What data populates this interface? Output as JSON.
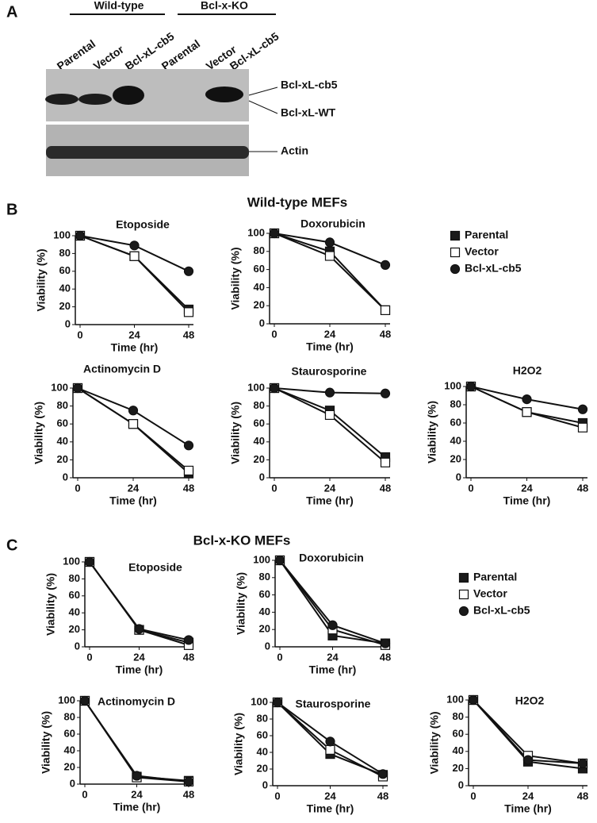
{
  "figure": {
    "panel_a": "A",
    "panel_b": "B",
    "panel_c": "C",
    "group_wt": "Wild-type",
    "group_ko": "Bcl-x-KO",
    "lanes": [
      "Parental",
      "Vector",
      "Bcl-xL-cb5",
      "Parental",
      "Vector",
      "Bcl-xL-cb5"
    ],
    "band_cb5": "Bcl-xL-cb5",
    "band_wt": "Bcl-xL-WT",
    "band_actin": "Actin",
    "section_wt": "Wild-type MEFs",
    "section_ko": "Bcl-x-KO MEFs"
  },
  "chart_data": [
    {
      "type": "line",
      "title": "Etoposide",
      "x": [
        0,
        24,
        48
      ],
      "xlim": [
        0,
        48
      ],
      "xticks": [
        0,
        24,
        48
      ],
      "ylim": [
        0,
        100
      ],
      "yticks": [
        0,
        20,
        40,
        60,
        80,
        100
      ],
      "xlabel": "Time (hr)",
      "ylabel": "Viability (%)",
      "series": [
        {
          "color": "#1a1a1a",
          "marker": "square",
          "values": [
            100,
            77,
            17
          ]
        },
        {
          "color": "#ffffff",
          "marker": "square",
          "values": [
            100,
            77,
            14
          ]
        },
        {
          "color": "#1a1a1a",
          "marker": "circle",
          "values": [
            100,
            89,
            60
          ]
        }
      ]
    },
    {
      "type": "line",
      "title": "Doxorubicin",
      "x": [
        0,
        24,
        48
      ],
      "xlim": [
        0,
        48
      ],
      "xticks": [
        0,
        24,
        48
      ],
      "ylim": [
        0,
        100
      ],
      "yticks": [
        0,
        20,
        40,
        60,
        80,
        100
      ],
      "xlabel": "Time (hr)",
      "ylabel": "Viability (%)",
      "legend": "right",
      "series": [
        {
          "name": "Parental",
          "color": "#1a1a1a",
          "marker": "square",
          "values": [
            100,
            80,
            15
          ]
        },
        {
          "name": "Vector",
          "color": "#ffffff",
          "marker": "square",
          "values": [
            100,
            75,
            15
          ]
        },
        {
          "name": "Bcl-xL-cb5",
          "color": "#1a1a1a",
          "marker": "circle",
          "values": [
            100,
            90,
            65
          ]
        }
      ]
    },
    {
      "type": "line",
      "title": "Actinomycin D",
      "x": [
        0,
        24,
        48
      ],
      "xlim": [
        0,
        48
      ],
      "xticks": [
        0,
        24,
        48
      ],
      "ylim": [
        0,
        100
      ],
      "yticks": [
        0,
        20,
        40,
        60,
        80,
        100
      ],
      "xlabel": "Time (hr)",
      "ylabel": "Viability (%)",
      "series": [
        {
          "color": "#1a1a1a",
          "marker": "square",
          "values": [
            100,
            60,
            5
          ]
        },
        {
          "color": "#ffffff",
          "marker": "square",
          "values": [
            100,
            60,
            8
          ]
        },
        {
          "color": "#1a1a1a",
          "marker": "circle",
          "values": [
            100,
            75,
            36
          ]
        }
      ]
    },
    {
      "type": "line",
      "title": "Staurosporine",
      "x": [
        0,
        24,
        48
      ],
      "xlim": [
        0,
        48
      ],
      "xticks": [
        0,
        24,
        48
      ],
      "ylim": [
        0,
        100
      ],
      "yticks": [
        0,
        20,
        40,
        60,
        80,
        100
      ],
      "xlabel": "Time (hr)",
      "ylabel": "Viability (%)",
      "series": [
        {
          "color": "#1a1a1a",
          "marker": "square",
          "values": [
            100,
            75,
            23
          ]
        },
        {
          "color": "#ffffff",
          "marker": "square",
          "values": [
            100,
            70,
            17
          ]
        },
        {
          "color": "#1a1a1a",
          "marker": "circle",
          "values": [
            100,
            95,
            94
          ]
        }
      ]
    },
    {
      "type": "line",
      "title": "H2O2",
      "x": [
        0,
        24,
        48
      ],
      "xlim": [
        0,
        48
      ],
      "xticks": [
        0,
        24,
        48
      ],
      "ylim": [
        0,
        100
      ],
      "yticks": [
        0,
        20,
        40,
        60,
        80,
        100
      ],
      "xlabel": "Time (hr)",
      "ylabel": "Viability (%)",
      "series": [
        {
          "color": "#1a1a1a",
          "marker": "square",
          "values": [
            100,
            72,
            60
          ]
        },
        {
          "color": "#ffffff",
          "marker": "square",
          "values": [
            100,
            72,
            55
          ]
        },
        {
          "color": "#1a1a1a",
          "marker": "circle",
          "values": [
            100,
            86,
            75
          ]
        }
      ]
    },
    {
      "type": "line",
      "title": "Etoposide",
      "x": [
        0,
        24,
        48
      ],
      "xlim": [
        0,
        48
      ],
      "xticks": [
        0,
        24,
        48
      ],
      "ylim": [
        0,
        100
      ],
      "yticks": [
        0,
        20,
        40,
        60,
        80,
        100
      ],
      "xlabel": "Time (hr)",
      "ylabel": "Viability (%)",
      "series": [
        {
          "color": "#1a1a1a",
          "marker": "square",
          "values": [
            100,
            20,
            5
          ]
        },
        {
          "color": "#ffffff",
          "marker": "square",
          "values": [
            100,
            20,
            2
          ]
        },
        {
          "color": "#1a1a1a",
          "marker": "circle",
          "values": [
            100,
            21,
            8
          ]
        }
      ]
    },
    {
      "type": "line",
      "title": "Doxorubicin",
      "x": [
        0,
        24,
        48
      ],
      "xlim": [
        0,
        48
      ],
      "xticks": [
        0,
        24,
        48
      ],
      "ylim": [
        0,
        100
      ],
      "yticks": [
        0,
        20,
        40,
        60,
        80,
        100
      ],
      "xlabel": "Time (hr)",
      "ylabel": "Viability (%)",
      "legend": "right",
      "series": [
        {
          "name": "Parental",
          "color": "#1a1a1a",
          "marker": "square",
          "values": [
            100,
            13,
            4
          ]
        },
        {
          "name": "Vector",
          "color": "#ffffff",
          "marker": "square",
          "values": [
            100,
            20,
            2
          ]
        },
        {
          "name": "Bcl-xL-cb5",
          "color": "#1a1a1a",
          "marker": "circle",
          "values": [
            100,
            25,
            4
          ]
        }
      ]
    },
    {
      "type": "line",
      "title": "Actinomycin D",
      "x": [
        0,
        24,
        48
      ],
      "xlim": [
        0,
        48
      ],
      "xticks": [
        0,
        24,
        48
      ],
      "ylim": [
        0,
        100
      ],
      "yticks": [
        0,
        20,
        40,
        60,
        80,
        100
      ],
      "xlabel": "Time (hr)",
      "ylabel": "Viability (%)",
      "series": [
        {
          "color": "#1a1a1a",
          "marker": "square",
          "values": [
            100,
            9,
            4
          ]
        },
        {
          "color": "#ffffff",
          "marker": "square",
          "values": [
            100,
            8,
            3
          ]
        },
        {
          "color": "#1a1a1a",
          "marker": "circle",
          "values": [
            100,
            10,
            3
          ]
        }
      ]
    },
    {
      "type": "line",
      "title": "Staurosporine",
      "x": [
        0,
        24,
        48
      ],
      "xlim": [
        0,
        48
      ],
      "xticks": [
        0,
        24,
        48
      ],
      "ylim": [
        0,
        100
      ],
      "yticks": [
        0,
        20,
        40,
        60,
        80,
        100
      ],
      "xlabel": "Time (hr)",
      "ylabel": "Viability (%)",
      "series": [
        {
          "color": "#1a1a1a",
          "marker": "square",
          "values": [
            100,
            38,
            13
          ]
        },
        {
          "color": "#ffffff",
          "marker": "square",
          "values": [
            100,
            43,
            11
          ]
        },
        {
          "color": "#1a1a1a",
          "marker": "circle",
          "values": [
            100,
            53,
            14
          ]
        }
      ]
    },
    {
      "type": "line",
      "title": "H2O2",
      "x": [
        0,
        24,
        48
      ],
      "xlim": [
        0,
        48
      ],
      "xticks": [
        0,
        24,
        48
      ],
      "ylim": [
        0,
        100
      ],
      "yticks": [
        0,
        20,
        40,
        60,
        80,
        100
      ],
      "xlabel": "Time (hr)",
      "ylabel": "Viability (%)",
      "series": [
        {
          "color": "#1a1a1a",
          "marker": "square",
          "values": [
            100,
            28,
            20
          ]
        },
        {
          "color": "#ffffff",
          "marker": "square",
          "values": [
            100,
            35,
            26
          ]
        },
        {
          "color": "#1a1a1a",
          "marker": "circle",
          "values": [
            100,
            30,
            26
          ]
        }
      ]
    }
  ]
}
